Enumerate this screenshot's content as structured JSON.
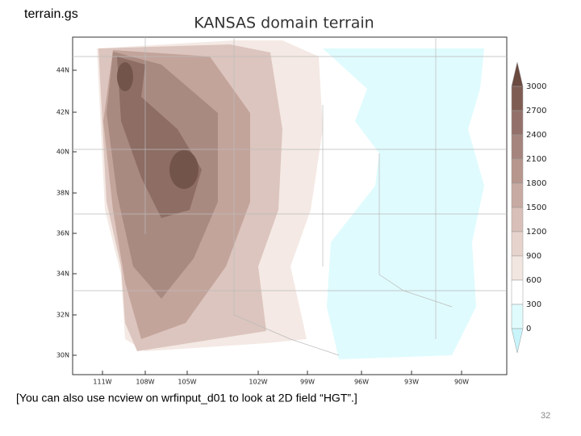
{
  "slide": {
    "script_name": "terrain.gs",
    "caption": "[You can also use ncview on wrfinput_d01 to look at 2D field “HGT”.]",
    "page_number": "32"
  },
  "map": {
    "title": "KANSAS domain terrain",
    "lat_labels": [
      "44N",
      "42N",
      "40N",
      "38N",
      "36N",
      "34N",
      "32N",
      "30N"
    ],
    "lon_labels": [
      "111W",
      "108W",
      "105W",
      "102W",
      "99W",
      "96W",
      "93W",
      "90W"
    ]
  },
  "colorbar": {
    "levels": [
      3000,
      2700,
      2400,
      2100,
      1800,
      1500,
      1200,
      900,
      600,
      300,
      0
    ],
    "colors": [
      "#6b4a40",
      "#7f5c52",
      "#93716a",
      "#a4847c",
      "#b6968d",
      "#c7aaa2",
      "#d8bfb8",
      "#e6d3cc",
      "#f2e6e0",
      "#ffffff",
      "#e0fbfc",
      "#c8f4fa"
    ]
  }
}
